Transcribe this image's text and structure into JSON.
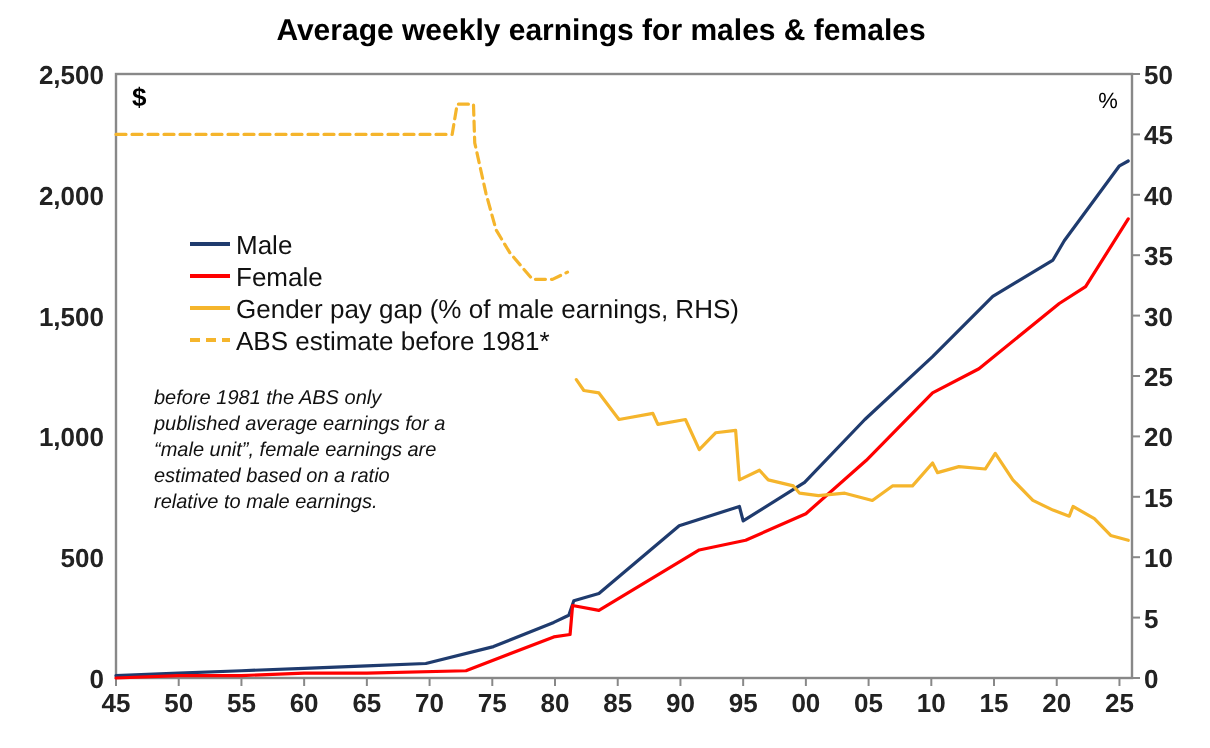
{
  "chart_data": {
    "type": "line",
    "title": "Average weekly earnings for males & females",
    "ylabel": "$",
    "y2label": "%",
    "annotations": [
      "before 1981 the ABS only published average earnings for a “male unit”, female earnings are estimated based on a ratio relative to male earnings."
    ],
    "xlim": [
      1945,
      2026
    ],
    "xticks": [
      {
        "value": 1945,
        "label": "45"
      },
      {
        "value": 1950,
        "label": "50"
      },
      {
        "value": 1955,
        "label": "55"
      },
      {
        "value": 1960,
        "label": "60"
      },
      {
        "value": 1965,
        "label": "65"
      },
      {
        "value": 1970,
        "label": "70"
      },
      {
        "value": 1975,
        "label": "75"
      },
      {
        "value": 1980,
        "label": "80"
      },
      {
        "value": 1985,
        "label": "85"
      },
      {
        "value": 1990,
        "label": "90"
      },
      {
        "value": 1995,
        "label": "95"
      },
      {
        "value": 2000,
        "label": "00"
      },
      {
        "value": 2005,
        "label": "05"
      },
      {
        "value": 2010,
        "label": "10"
      },
      {
        "value": 2015,
        "label": "15"
      },
      {
        "value": 2020,
        "label": "20"
      },
      {
        "value": 2025,
        "label": "25"
      }
    ],
    "ylim": [
      0,
      2500
    ],
    "yticks": [
      {
        "value": 0,
        "label": "0"
      },
      {
        "value": 500,
        "label": "500"
      },
      {
        "value": 1000,
        "label": "1,000"
      },
      {
        "value": 1500,
        "label": "1,500"
      },
      {
        "value": 2000,
        "label": "2,000"
      },
      {
        "value": 2500,
        "label": "2,500"
      }
    ],
    "y2lim": [
      0,
      50
    ],
    "y2ticks": [
      0,
      5,
      10,
      15,
      20,
      25,
      30,
      35,
      40,
      45,
      50
    ],
    "legend": "left",
    "grid": false,
    "marker": "none",
    "series": [
      {
        "name": "Male",
        "color": "#1f3b6e",
        "x": [
          1945,
          1950,
          1955,
          1960,
          1965,
          1969.7,
          1975.1,
          1979.9,
          1981.1,
          1981.5,
          1983.5,
          1989.9,
          1994.7,
          1995,
          1999.9,
          2004.7,
          2010.1,
          2014.9,
          2019.7,
          2020.6,
          2025,
          2025.7
        ],
        "values": [
          10,
          20,
          30,
          40,
          50,
          60,
          130,
          230,
          260,
          320,
          350,
          630,
          710,
          650,
          810,
          1070,
          1330,
          1580,
          1730,
          1810,
          2120,
          2140
        ]
      },
      {
        "name": "Female",
        "color": "#ff0000",
        "x": [
          1945,
          1950,
          1955,
          1960,
          1965,
          1972.9,
          1979.9,
          1981.2,
          1981.4,
          1983.5,
          1991.5,
          1995.2,
          2000,
          2004.8,
          2010.1,
          2013.8,
          2020.2,
          2022.3,
          2025.7
        ],
        "values": [
          0,
          10,
          10,
          20,
          20,
          30,
          170,
          180,
          300,
          280,
          530,
          570,
          680,
          900,
          1180,
          1280,
          1550,
          1620,
          1900
        ]
      },
      {
        "name": "Gender pay gap (% of male earnings, RHS)",
        "color": "#f5b52c",
        "axis": "y2",
        "line_style": "solid",
        "x": [
          1981.7,
          1982.3,
          1983.5,
          1985.1,
          1987.8,
          1988.2,
          1990.4,
          1991.5,
          1992.8,
          1994.4,
          1994.7,
          1996.3,
          1997,
          1999,
          1999.5,
          2001,
          2003.1,
          2005.3,
          2006.9,
          2008.5,
          2010.1,
          2010.5,
          2012.2,
          2014.3,
          2015.1,
          2016.5,
          2018.1,
          2019.7,
          2021,
          2021.3,
          2023,
          2024.3,
          2025.7
        ],
        "values": [
          24.7,
          23.8,
          23.6,
          21.4,
          21.9,
          21,
          21.4,
          18.9,
          20.3,
          20.5,
          16.4,
          17.2,
          16.4,
          15.9,
          15.3,
          15.1,
          15.3,
          14.7,
          15.9,
          15.9,
          17.8,
          17,
          17.5,
          17.3,
          18.6,
          16.4,
          14.7,
          13.9,
          13.4,
          14.2,
          13.2,
          11.8,
          11.4
        ]
      },
      {
        "name": "ABS estimate before 1981*",
        "color": "#f5b52c",
        "axis": "y2",
        "line_style": "dashed",
        "x": [
          1945,
          1971.8,
          1972.2,
          1973.5,
          1973.6,
          1974.5,
          1975.3,
          1976.4,
          1978.2,
          1979.8,
          1981
        ],
        "values": [
          45,
          45,
          47.5,
          47.5,
          44.3,
          40.1,
          37.1,
          35.2,
          33,
          33,
          33.6
        ]
      }
    ]
  }
}
